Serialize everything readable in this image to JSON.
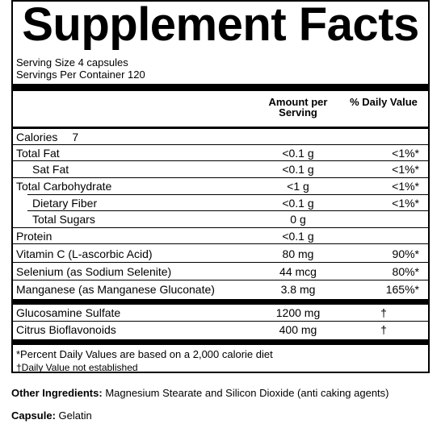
{
  "title": "Supplement Facts",
  "serving_size": "Serving Size 4 capsules",
  "servings_per_container": "Servings Per Container 120",
  "headers": {
    "amount": "Amount per Serving",
    "daily_value": "% Daily Value"
  },
  "calories": {
    "label": "Calories",
    "value": "7"
  },
  "rows": [
    {
      "name": "Total Fat",
      "amount": "<0.1 g",
      "dv": "<1%*"
    },
    {
      "name": "Sat Fat",
      "amount": "<0.1 g",
      "dv": "<1%*"
    },
    {
      "name": "Total Carbohydrate",
      "amount": "<1 g",
      "dv": "<1%*"
    },
    {
      "name": "Dietary Fiber",
      "amount": "<0.1 g",
      "dv": "<1%*"
    },
    {
      "name": "Total Sugars",
      "amount": "0 g",
      "dv": ""
    },
    {
      "name": "Protein",
      "amount": "<0.1 g",
      "dv": ""
    },
    {
      "name": "Vitamin C (L-ascorbic Acid)",
      "amount": "80 mg",
      "dv": "90%*"
    },
    {
      "name": "Selenium (as Sodium Selenite)",
      "amount": "44 mcg",
      "dv": "80%*"
    },
    {
      "name": "Manganese (as Manganese Gluconate)",
      "amount": "3.8 mg",
      "dv": "165%*"
    }
  ],
  "other_rows": [
    {
      "name": "Glucosamine Sulfate",
      "amount": "1200 mg",
      "dv": "†"
    },
    {
      "name": "Citrus Bioflavonoids",
      "amount": "400 mg",
      "dv": "†"
    }
  ],
  "footnotes": {
    "percent_dv": "*Percent Daily Values are based on a 2,000 calorie diet",
    "not_established": "†Daily Value not established"
  },
  "other_ingredients": {
    "label": "Other Ingredients:",
    "value": "Magnesium Stearate and Silicon Dioxide (anti caking agents)"
  },
  "capsule": {
    "label": "Capsule:",
    "value": "Gelatin"
  }
}
